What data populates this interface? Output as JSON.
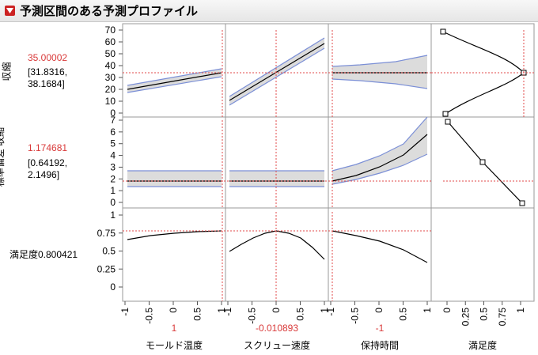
{
  "title": "予測区間のある予測プロファイル",
  "responses": [
    {
      "name": "収縮",
      "value": "35.00002",
      "ci_low": "[31.8316,",
      "ci_high": "38.1684]"
    },
    {
      "name": "標準偏差 収縮",
      "value": "1.174681",
      "ci_low": "[0.64192,",
      "ci_high": "2.1496]"
    },
    {
      "name": "満足度",
      "value": "満足度0.800421"
    }
  ],
  "factors": [
    {
      "name": "モールド温度",
      "current": "1"
    },
    {
      "name": "スクリュー速度",
      "current": "-0.010893"
    },
    {
      "name": "保持時間",
      "current": "-1"
    },
    {
      "name": "満足度",
      "current": ""
    }
  ],
  "axes": {
    "row1_ticks": [
      "70",
      "60",
      "50",
      "40",
      "30",
      "20",
      "10",
      "0"
    ],
    "row2_ticks": [
      "7",
      "6",
      "5",
      "4",
      "3",
      "2",
      "1",
      "0"
    ],
    "row3_ticks": [
      "1",
      "0.75",
      "0.5",
      "0.25",
      "0"
    ],
    "x_ticks": [
      "-1",
      "-0.5",
      "0",
      "0.5",
      "1"
    ],
    "desir_ticks": [
      "0",
      "0.25",
      "0.5",
      "0.75",
      "1"
    ]
  },
  "colors": {
    "accent_red": "#d93a3a",
    "band_fill": "#dcdcdc",
    "band_edge": "#7b8fd6"
  }
}
